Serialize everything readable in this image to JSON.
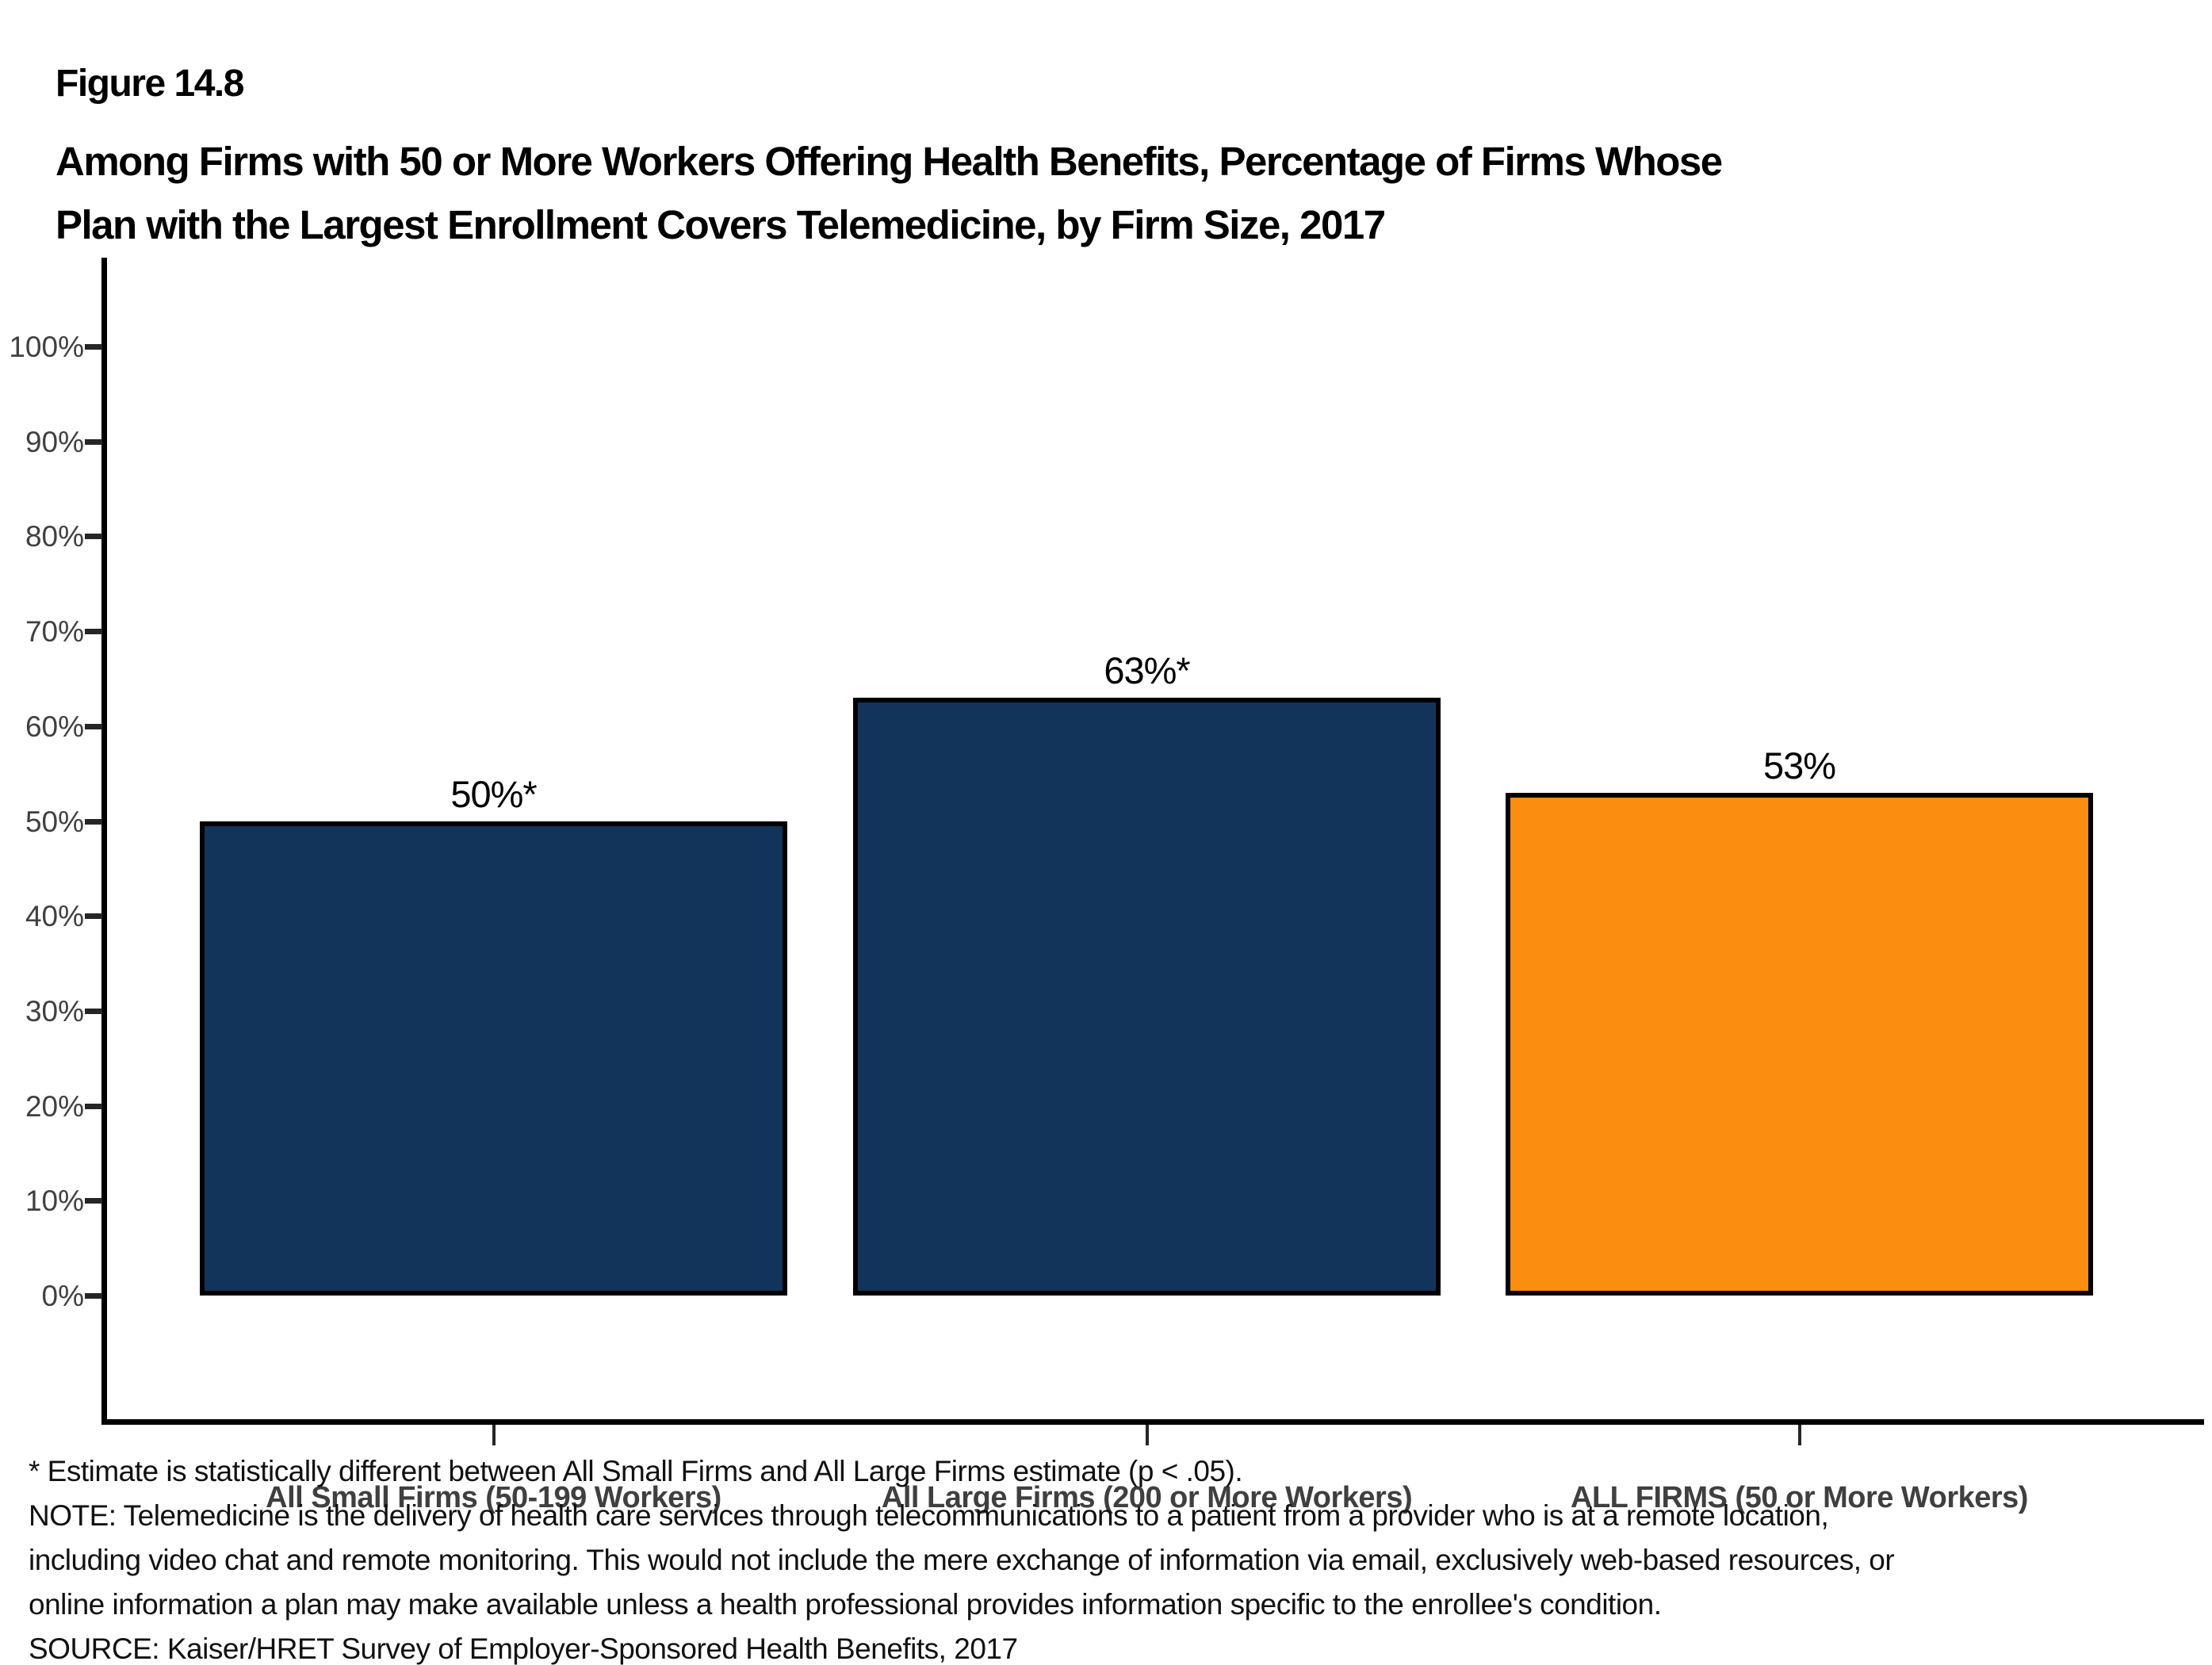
{
  "figure_label": "Figure 14.8",
  "title_line1": "Among Firms with 50 or More Workers Offering Health Benefits, Percentage of Firms Whose",
  "title_line2": "Plan with the Largest Enrollment Covers Telemedicine, by Firm Size, 2017",
  "chart_data": {
    "type": "bar",
    "title": "Among Firms with 50 or More Workers Offering Health Benefits, Percentage of Firms Whose Plan with the Largest Enrollment Covers Telemedicine, by Firm Size, 2017",
    "categories": [
      "All Small Firms (50-199 Workers)",
      "All Large Firms (200 or More Workers)",
      "ALL FIRMS (50 or More Workers)"
    ],
    "values": [
      50,
      63,
      53
    ],
    "value_labels": [
      "50%*",
      "63%*",
      "53%"
    ],
    "bar_colors": [
      "#13345A",
      "#13345A",
      "#FB8D11"
    ],
    "bar_border_color": "#000000",
    "xlabel": "",
    "ylabel": "",
    "ylim": [
      0,
      100
    ],
    "ytick_step": 10,
    "ytick_suffix": "%",
    "grid": false,
    "legend_position": "none"
  },
  "footnotes": [
    "* Estimate is statistically different between All Small Firms and All Large Firms estimate (p < .05).",
    "NOTE: Telemedicine is the delivery of health care services through telecommunications to a patient from a provider who is at a remote location,",
    "including video chat and remote monitoring. This would not include the mere exchange of information via email, exclusively web-based resources, or",
    "online information a plan may make available unless a health professional provides information specific to the enrollee's condition.",
    "SOURCE: Kaiser/HRET Survey of Employer-Sponsored Health Benefits, 2017"
  ]
}
